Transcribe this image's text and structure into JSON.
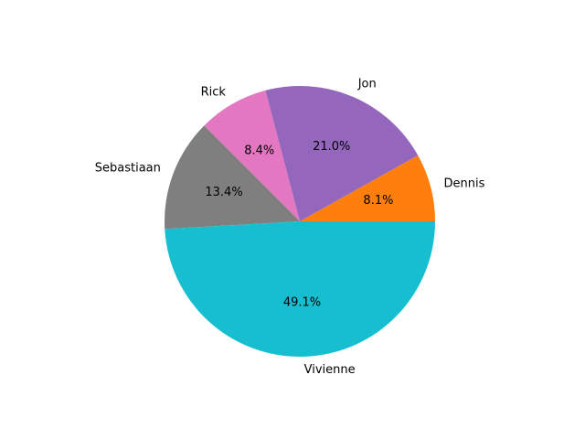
{
  "chart_data": {
    "type": "pie",
    "start_angle_deg": 0,
    "direction": "counterclockwise",
    "slices": [
      {
        "label": "Dennis",
        "value": 8.1,
        "pct_text": "8.1%",
        "color": "#ff7f0e"
      },
      {
        "label": "Jon",
        "value": 21.0,
        "pct_text": "21.0%",
        "color": "#9467bd"
      },
      {
        "label": "Rick",
        "value": 8.4,
        "pct_text": "8.4%",
        "color": "#e377c2"
      },
      {
        "label": "Sebastiaan",
        "value": 13.4,
        "pct_text": "13.4%",
        "color": "#7f7f7f"
      },
      {
        "label": "Vivienne",
        "value": 49.1,
        "pct_text": "49.1%",
        "color": "#17becf"
      }
    ]
  }
}
